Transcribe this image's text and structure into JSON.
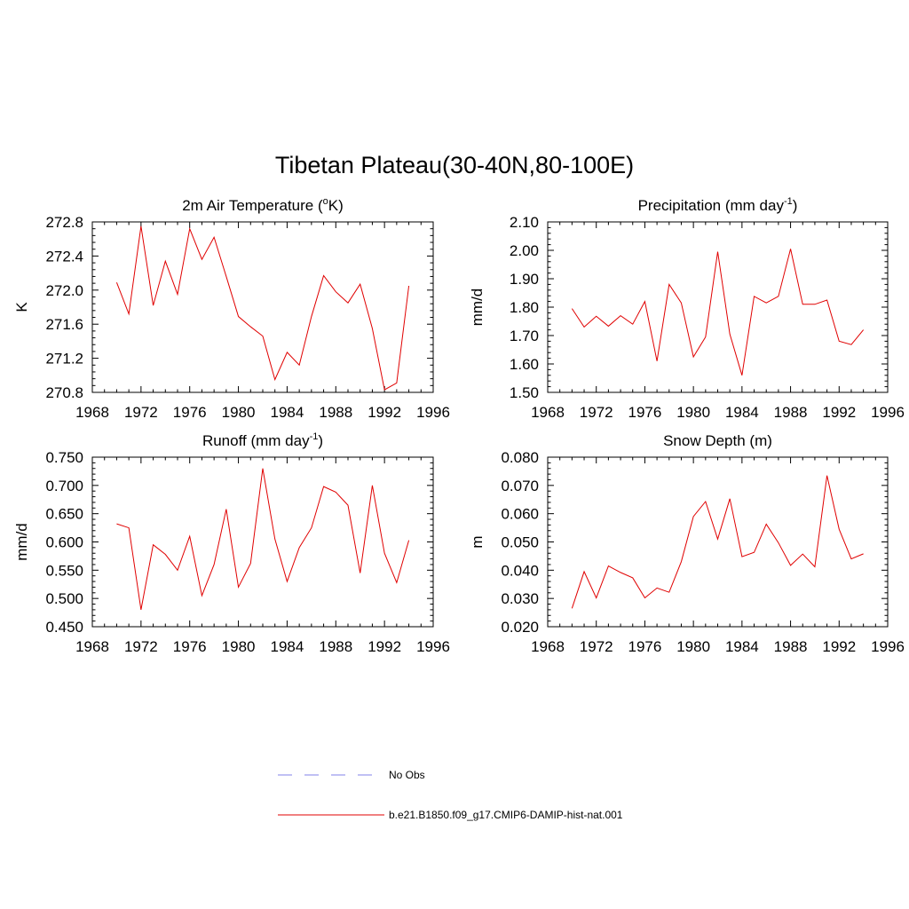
{
  "figure": {
    "title": "Tibetan Plateau(30-40N,80-100E)"
  },
  "legend": {
    "items": [
      {
        "label": "No Obs",
        "style": "dashed",
        "color": "#9a9aee"
      },
      {
        "label": "b.e21.B1850.f09_g17.CMIP6-DAMIP-hist-nat.001",
        "style": "solid",
        "color": "#e00000"
      }
    ]
  },
  "chart_data": [
    {
      "type": "line",
      "title": "2m Air Temperature (",
      "title_sup": "o",
      "title_tail": "K)",
      "ylabel": "K",
      "xlim": [
        1968,
        1996
      ],
      "xticks": [
        "1968",
        "1972",
        "1976",
        "1980",
        "1984",
        "1988",
        "1992",
        "1996"
      ],
      "ylim": [
        270.8,
        272.8
      ],
      "yticks": [
        "270.8",
        "271.2",
        "271.6",
        "272.0",
        "272.4",
        "272.8"
      ],
      "grid": false,
      "series": [
        {
          "color": "#e00000",
          "x": [
            1970,
            1971,
            1972,
            1973,
            1974,
            1975,
            1976,
            1977,
            1978,
            1979,
            1980,
            1981,
            1982,
            1983,
            1984,
            1985,
            1986,
            1987,
            1988,
            1989,
            1990,
            1991,
            1992,
            1993,
            1994
          ],
          "values": [
            272.09,
            271.72,
            272.75,
            271.82,
            272.34,
            271.95,
            272.72,
            272.36,
            272.62,
            272.16,
            271.69,
            271.57,
            271.46,
            270.95,
            271.27,
            271.12,
            271.69,
            272.17,
            271.98,
            271.85,
            272.07,
            271.55,
            270.83,
            270.91,
            272.05
          ]
        }
      ]
    },
    {
      "type": "line",
      "title": "Precipitation (mm day",
      "title_sup": "-1",
      "title_tail": ")",
      "ylabel": "mm/d",
      "xlim": [
        1968,
        1996
      ],
      "xticks": [
        "1968",
        "1972",
        "1976",
        "1980",
        "1984",
        "1988",
        "1992",
        "1996"
      ],
      "ylim": [
        1.5,
        2.1
      ],
      "yticks": [
        "1.50",
        "1.60",
        "1.70",
        "1.80",
        "1.90",
        "2.00",
        "2.10"
      ],
      "grid": false,
      "series": [
        {
          "color": "#e00000",
          "x": [
            1970,
            1971,
            1972,
            1973,
            1974,
            1975,
            1976,
            1977,
            1978,
            1979,
            1980,
            1981,
            1982,
            1983,
            1984,
            1985,
            1986,
            1987,
            1988,
            1989,
            1990,
            1991,
            1992,
            1993,
            1994
          ],
          "values": [
            1.795,
            1.73,
            1.768,
            1.733,
            1.77,
            1.74,
            1.82,
            1.61,
            1.88,
            1.815,
            1.625,
            1.695,
            1.995,
            1.705,
            1.56,
            1.838,
            1.815,
            1.838,
            2.005,
            1.81,
            1.81,
            1.825,
            1.68,
            1.668,
            1.72
          ]
        }
      ]
    },
    {
      "type": "line",
      "title": "Runoff (mm day",
      "title_sup": "-1",
      "title_tail": ")",
      "ylabel": "mm/d",
      "xlim": [
        1968,
        1996
      ],
      "xticks": [
        "1968",
        "1972",
        "1976",
        "1980",
        "1984",
        "1988",
        "1992",
        "1996"
      ],
      "ylim": [
        0.45,
        0.75
      ],
      "yticks": [
        "0.450",
        "0.500",
        "0.550",
        "0.600",
        "0.650",
        "0.700",
        "0.750"
      ],
      "grid": false,
      "series": [
        {
          "color": "#e00000",
          "x": [
            1970,
            1971,
            1972,
            1973,
            1974,
            1975,
            1976,
            1977,
            1978,
            1979,
            1980,
            1981,
            1982,
            1983,
            1984,
            1985,
            1986,
            1987,
            1988,
            1989,
            1990,
            1991,
            1992,
            1993,
            1994
          ],
          "values": [
            0.632,
            0.625,
            0.48,
            0.595,
            0.578,
            0.55,
            0.61,
            0.505,
            0.56,
            0.658,
            0.52,
            0.562,
            0.73,
            0.605,
            0.53,
            0.59,
            0.625,
            0.698,
            0.688,
            0.665,
            0.545,
            0.7,
            0.58,
            0.528,
            0.603
          ]
        }
      ]
    },
    {
      "type": "line",
      "title": "Snow Depth (m)",
      "title_sup": "",
      "title_tail": "",
      "ylabel": "m",
      "xlim": [
        1968,
        1996
      ],
      "xticks": [
        "1968",
        "1972",
        "1976",
        "1980",
        "1984",
        "1988",
        "1992",
        "1996"
      ],
      "ylim": [
        0.02,
        0.08
      ],
      "yticks": [
        "0.020",
        "0.030",
        "0.040",
        "0.050",
        "0.060",
        "0.070",
        "0.080"
      ],
      "grid": false,
      "series": [
        {
          "color": "#e00000",
          "x": [
            1970,
            1971,
            1972,
            1973,
            1974,
            1975,
            1976,
            1977,
            1978,
            1979,
            1980,
            1981,
            1982,
            1983,
            1984,
            1985,
            1986,
            1987,
            1988,
            1989,
            1990,
            1991,
            1992,
            1993,
            1994
          ],
          "values": [
            0.0265,
            0.0395,
            0.0302,
            0.0415,
            0.0392,
            0.0373,
            0.0302,
            0.0337,
            0.0322,
            0.043,
            0.059,
            0.0643,
            0.051,
            0.0653,
            0.0448,
            0.0463,
            0.0563,
            0.0497,
            0.0417,
            0.0457,
            0.0412,
            0.0735,
            0.0545,
            0.044,
            0.0458
          ]
        }
      ]
    }
  ]
}
